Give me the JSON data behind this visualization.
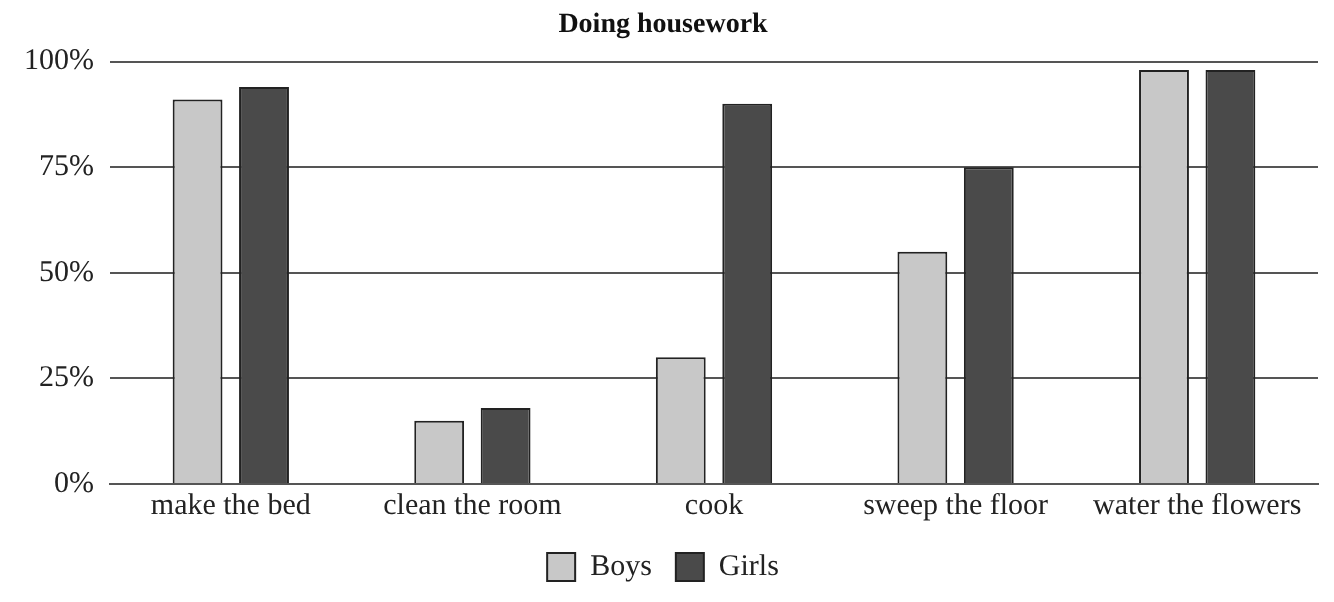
{
  "chart_data": {
    "type": "bar",
    "title": "Doing housework",
    "categories": [
      "make the bed",
      "clean the room",
      "cook",
      "sweep the floor",
      "water the flowers"
    ],
    "series": [
      {
        "name": "Boys",
        "color": "#c8c8c8",
        "values": [
          91,
          15,
          30,
          55,
          98
        ]
      },
      {
        "name": "Girls",
        "color": "#4a4a4a",
        "values": [
          94,
          18,
          90,
          75,
          98
        ]
      }
    ],
    "ylim": [
      0,
      100
    ],
    "yticks": [
      {
        "value": 0,
        "label": "0%"
      },
      {
        "value": 25,
        "label": "25%"
      },
      {
        "value": 50,
        "label": "50%"
      },
      {
        "value": 75,
        "label": "75%"
      },
      {
        "value": 100,
        "label": "100%"
      }
    ],
    "grid": "y",
    "legend": "bottom"
  }
}
